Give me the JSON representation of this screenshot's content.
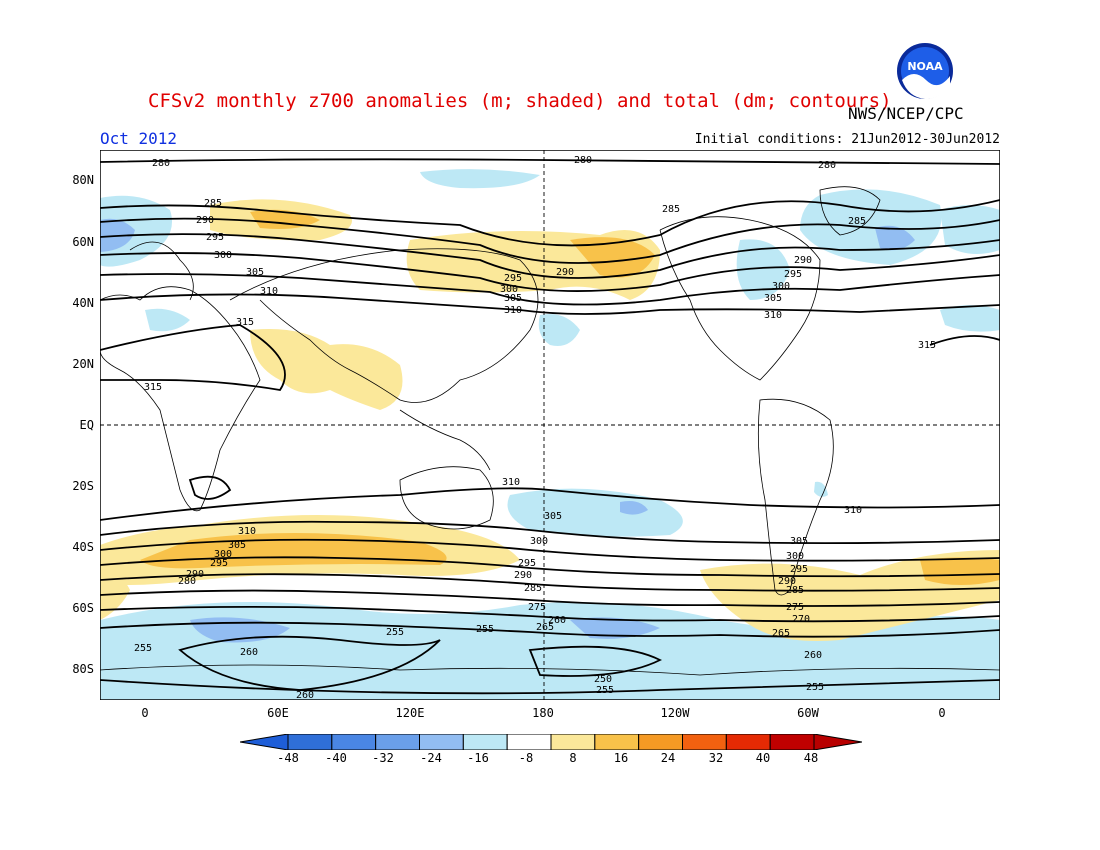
{
  "header": {
    "title": "CFSv2 monthly z700 anomalies (m; shaded) and total (dm; contours)",
    "org": "NWS/NCEP/CPC",
    "month": "Oct 2012",
    "initial_conditions": "Initial conditions: 21Jun2012-30Jun2012",
    "logo_text": "NOAA"
  },
  "map": {
    "lat_labels": [
      "80N",
      "60N",
      "40N",
      "20N",
      "EQ",
      "20S",
      "40S",
      "60S",
      "80S"
    ],
    "lon_labels": [
      "0",
      "60E",
      "120E",
      "180",
      "120W",
      "60W",
      "0"
    ],
    "contour_labels": [
      "280",
      "285",
      "290",
      "295",
      "300",
      "305",
      "310",
      "315",
      "310",
      "305",
      "300",
      "295",
      "290",
      "285",
      "280",
      "275",
      "270",
      "265",
      "260",
      "255",
      "250"
    ]
  },
  "colorbar": {
    "labels": [
      "-48",
      "-40",
      "-32",
      "-24",
      "-16",
      "-8",
      "8",
      "16",
      "24",
      "32",
      "40",
      "48"
    ],
    "colors": [
      "#2f6fd8",
      "#4a86e4",
      "#6a9fea",
      "#92bdf2",
      "#bde8f5",
      "#ffffff",
      "#fbe89a",
      "#f8c24a",
      "#f59a24",
      "#f26110",
      "#e52a04",
      "#c00000"
    ]
  }
}
